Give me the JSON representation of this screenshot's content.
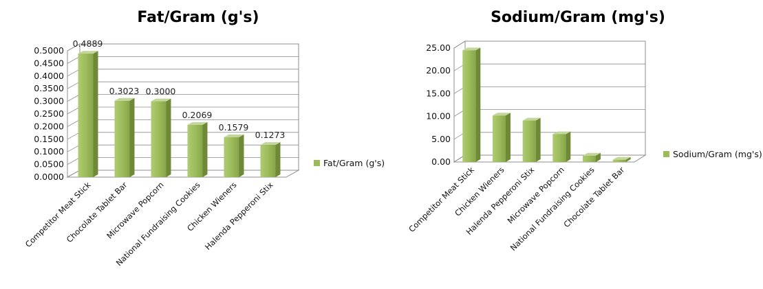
{
  "chart_data": [
    {
      "type": "bar",
      "title": "Fat/Gram (g's)",
      "categories": [
        "Competitor Meat Stick",
        "Chocolate Tablet Bar",
        "Microwave Popcorn",
        "National Fundraising Cookies",
        "Chicken Wieners",
        "Halenda Pepperoni Stix"
      ],
      "series": [
        {
          "name": "Fat/Gram (g's)",
          "values": [
            0.4889,
            0.3023,
            0.3,
            0.2069,
            0.1579,
            0.1273
          ],
          "labels": [
            "0.4889",
            "0.3023",
            "0.3000",
            "0.2069",
            "0.1579",
            "0.1273"
          ]
        }
      ],
      "yticks": [
        "0.0000",
        "0.0500",
        "0.1000",
        "0.1500",
        "0.2000",
        "0.2500",
        "0.3000",
        "0.3500",
        "0.4000",
        "0.4500",
        "0.5000"
      ],
      "ylim": [
        0,
        0.5
      ],
      "grid": true,
      "legend": "right",
      "data_labels": true,
      "bar_color": "#9BBB59"
    },
    {
      "type": "bar",
      "title": "Sodium/Gram (mg's)",
      "categories": [
        "Competitor Meat Stick",
        "Chicken Wieners",
        "Halenda Pepperoni Stix",
        "Microwave Popcorn",
        "National Fundraising Cookies",
        "Chocolate Tablet Bar"
      ],
      "series": [
        {
          "name": "Sodium/Gram (mg's)",
          "values": [
            24.5,
            10.2,
            9.1,
            6.1,
            1.4,
            0.5
          ]
        }
      ],
      "yticks": [
        "0.00",
        "5.00",
        "10.00",
        "15.00",
        "20.00",
        "25.00"
      ],
      "ylim": [
        0,
        25
      ],
      "grid": true,
      "legend": "right",
      "data_labels": false,
      "bar_color": "#9BBB59"
    }
  ]
}
